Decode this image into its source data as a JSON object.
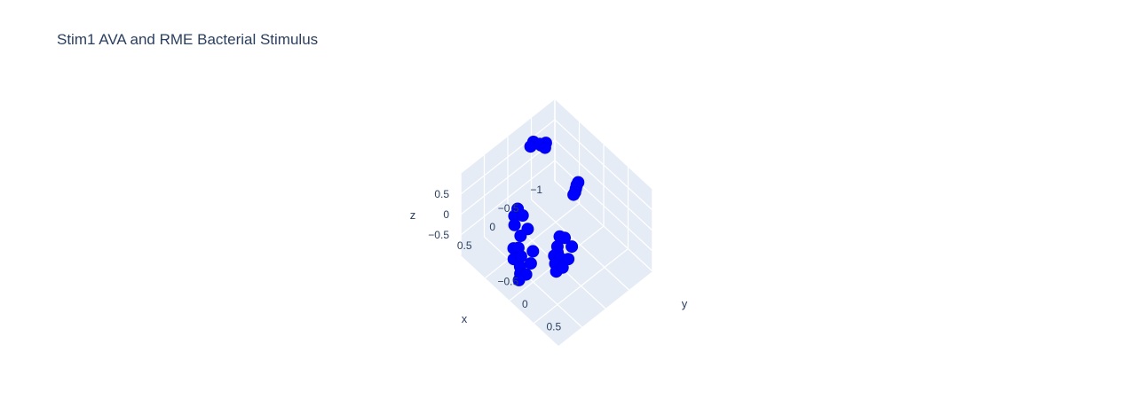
{
  "chart_data": {
    "type": "scatter3d",
    "title": "Stim1 AVA and RME Bacterial Stimulus",
    "xlabel": "x",
    "ylabel": "y",
    "zlabel": "z",
    "x_ticks": [
      "−1",
      "−0.5",
      "0",
      "0.5"
    ],
    "x_tick_values": [
      -1,
      -0.5,
      0,
      0.5
    ],
    "y_ticks": [
      "−0.5",
      "0",
      "0.5"
    ],
    "y_tick_values": [
      -0.5,
      0,
      0.5
    ],
    "z_ticks": [
      "−0.5",
      "0",
      "0.5"
    ],
    "z_tick_values": [
      -0.5,
      0,
      0.5
    ],
    "xlim": [
      -1,
      1
    ],
    "ylim": [
      -1,
      1
    ],
    "zlim": [
      -1,
      1
    ],
    "grid": true,
    "marker_color": "#0000ff",
    "pane_color": "#e5ecf6",
    "text_color": "#2a3f5f",
    "series": [
      {
        "values": [
          {
            "x": -0.55,
            "y": -0.75,
            "z": 0.62
          },
          {
            "x": -0.5,
            "y": -0.72,
            "z": 0.58
          },
          {
            "x": -0.5,
            "y": -0.8,
            "z": 0.55
          },
          {
            "x": -0.42,
            "y": -0.88,
            "z": 0.62
          },
          {
            "x": -0.45,
            "y": -0.78,
            "z": 0.65
          },
          {
            "x": -0.38,
            "y": -0.9,
            "z": 0.52
          },
          {
            "x": -0.25,
            "y": 0.2,
            "z": 0.98
          },
          {
            "x": -0.2,
            "y": 0.22,
            "z": 0.98
          },
          {
            "x": -0.15,
            "y": 0.25,
            "z": 0.97
          },
          {
            "x": -0.1,
            "y": 0.28,
            "z": 0.96
          },
          {
            "x": -0.05,
            "y": 0.3,
            "z": 0.97
          },
          {
            "x": 0.35,
            "y": 0.5,
            "z": 0.5
          },
          {
            "x": 0.35,
            "y": 0.4,
            "z": 0.42
          },
          {
            "x": 0.3,
            "y": 0.6,
            "z": 0.35
          },
          {
            "x": 0.45,
            "y": 0.45,
            "z": 0.32
          },
          {
            "x": 0.5,
            "y": 0.5,
            "z": 0.28
          },
          {
            "x": 0.55,
            "y": 0.6,
            "z": 0.3
          },
          {
            "x": 0.6,
            "y": 0.7,
            "z": 0.22
          },
          {
            "x": 0.55,
            "y": 0.48,
            "z": 0.22
          },
          {
            "x": 0.6,
            "y": 0.55,
            "z": 0.15
          },
          {
            "x": 0.65,
            "y": 0.62,
            "z": 0.08
          },
          {
            "x": 0.5,
            "y": 0.72,
            "z": 0.36
          },
          {
            "x": 0.05,
            "y": -0.75,
            "z": -0.45
          },
          {
            "x": 0.15,
            "y": -0.72,
            "z": -0.5
          },
          {
            "x": 0.25,
            "y": -0.62,
            "z": -0.52
          },
          {
            "x": 0.1,
            "y": -0.6,
            "z": -0.4
          },
          {
            "x": 0.3,
            "y": -0.45,
            "z": -0.55
          },
          {
            "x": 0.45,
            "y": -0.35,
            "z": -0.6
          },
          {
            "x": 0.5,
            "y": -0.4,
            "z": -0.62
          },
          {
            "x": 0.55,
            "y": -0.2,
            "z": -0.55
          },
          {
            "x": 0.65,
            "y": -0.12,
            "z": -0.62
          },
          {
            "x": 0.6,
            "y": -0.3,
            "z": -0.68
          },
          {
            "x": 0.72,
            "y": -0.05,
            "z": -0.65
          },
          {
            "x": 0.78,
            "y": -0.02,
            "z": -0.72
          },
          {
            "x": 0.4,
            "y": -0.1,
            "z": -0.45
          },
          {
            "x": 0.55,
            "y": 0.0,
            "z": -0.5
          },
          {
            "x": 0.7,
            "y": 0.05,
            "z": -0.58
          },
          {
            "x": 0.2,
            "y": -0.4,
            "z": -0.42
          }
        ]
      }
    ]
  }
}
